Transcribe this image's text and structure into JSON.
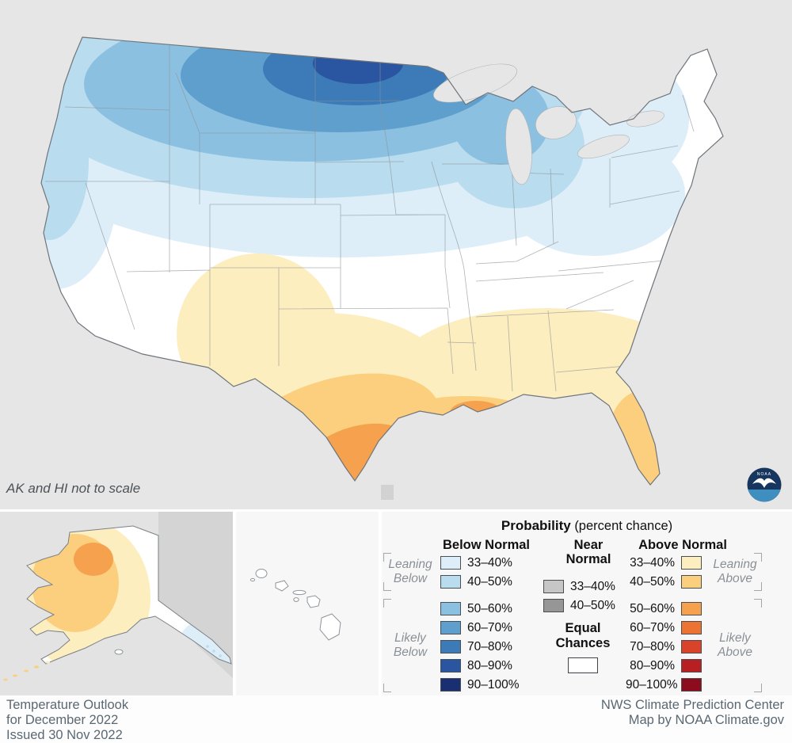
{
  "map": {
    "scale_note": "AK and HI not to scale",
    "noaa_logo_label": "NOAA",
    "background": "#e6e6e6",
    "logo_navy": "#16365f",
    "logo_sea": "#3e8ec0"
  },
  "legend": {
    "title": "Probability",
    "title_suffix": "(percent chance)",
    "columns": {
      "below": "Below Normal",
      "near": "Near Normal",
      "above": "Above Normal"
    },
    "groups": {
      "leaning_below": "Leaning Below",
      "likely_below": "Likely Below",
      "leaning_above": "Leaning Above",
      "likely_above": "Likely Above"
    },
    "equal_chances": "Equal Chances",
    "equal_color": "#ffffff",
    "below_rows": [
      {
        "label": "33–40%",
        "color": "#ddeef8"
      },
      {
        "label": "40–50%",
        "color": "#b9dcef"
      },
      {
        "label": "50–60%",
        "color": "#8cc0e0"
      },
      {
        "label": "60–70%",
        "color": "#5e9fce"
      },
      {
        "label": "70–80%",
        "color": "#3c7ab8"
      },
      {
        "label": "80–90%",
        "color": "#2a55a0"
      },
      {
        "label": "90–100%",
        "color": "#1a2f72"
      }
    ],
    "near_rows": [
      {
        "label": "33–40%",
        "color": "#c6c6c6"
      },
      {
        "label": "40–50%",
        "color": "#969696"
      }
    ],
    "above_rows": [
      {
        "label": "33–40%",
        "color": "#fdeec0"
      },
      {
        "label": "40–50%",
        "color": "#fbcf7e"
      },
      {
        "label": "50–60%",
        "color": "#f5a14e"
      },
      {
        "label": "60–70%",
        "color": "#ed7333"
      },
      {
        "label": "70–80%",
        "color": "#d8432a"
      },
      {
        "label": "80–90%",
        "color": "#b81f23"
      },
      {
        "label": "90–100%",
        "color": "#8c0b1d"
      }
    ]
  },
  "footer": {
    "left": [
      "Temperature Outlook",
      "for December 2022",
      "Issued 30 Nov 2022"
    ],
    "right": [
      "NWS Climate Prediction Center",
      "Map by NOAA Climate.gov"
    ]
  }
}
